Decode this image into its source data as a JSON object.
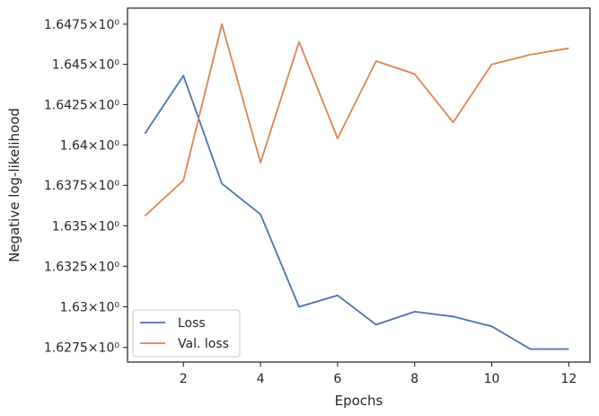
{
  "chart_data": {
    "type": "line",
    "xlabel": "Epochs",
    "ylabel": "Negative log-likelihood",
    "xlim": [
      0.55,
      12.55
    ],
    "ylim": [
      1.6266,
      1.6485
    ],
    "log_scale_y": true,
    "grid": false,
    "legend_position": "lower-left",
    "x": [
      1,
      2,
      3,
      4,
      5,
      6,
      7,
      8,
      9,
      10,
      11,
      12
    ],
    "x_ticks": [
      2,
      4,
      6,
      8,
      10,
      12
    ],
    "x_tick_labels": [
      "2",
      "4",
      "6",
      "8",
      "10",
      "12"
    ],
    "y_ticks": [
      1.6275,
      1.63,
      1.6325,
      1.635,
      1.6375,
      1.64,
      1.6425,
      1.645,
      1.6475
    ],
    "y_tick_labels": [
      "1.6275×10⁰",
      "1.63×10⁰",
      "1.6325×10⁰",
      "1.635×10⁰",
      "1.6375×10⁰",
      "1.64×10⁰",
      "1.6425×10⁰",
      "1.645×10⁰",
      "1.6475×10⁰"
    ],
    "series": [
      {
        "name": "Loss",
        "color": "#4c72b0",
        "values": [
          1.6407,
          1.6443,
          1.6376,
          1.6357,
          1.63,
          1.6307,
          1.6289,
          1.6297,
          1.6294,
          1.6288,
          1.6274,
          1.6274
        ]
      },
      {
        "name": "Val. loss",
        "color": "#dd8452",
        "values": [
          1.6356,
          1.6378,
          1.6475,
          1.6389,
          1.6464,
          1.6404,
          1.6452,
          1.6444,
          1.6414,
          1.645,
          1.6456,
          1.646
        ]
      }
    ]
  }
}
